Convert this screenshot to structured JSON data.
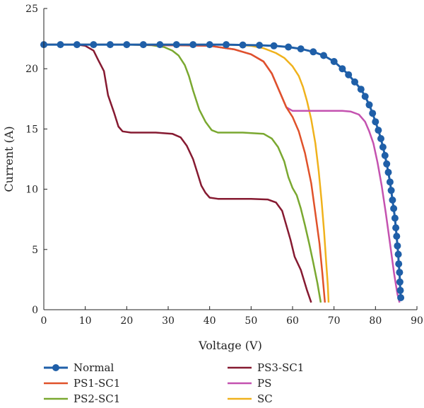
{
  "chart_data": {
    "type": "line",
    "xlabel": "Voltage (V)",
    "ylabel": "Current (A)",
    "xlim": [
      0,
      90
    ],
    "ylim": [
      0,
      25
    ],
    "xticks": [
      0,
      10,
      20,
      30,
      40,
      50,
      60,
      70,
      80,
      90
    ],
    "yticks": [
      0,
      5,
      10,
      15,
      20,
      25
    ],
    "grid": false,
    "legend_position": "bottom",
    "series": [
      {
        "name": "Normal",
        "color": "#1f5fa8",
        "markers": true,
        "points": [
          [
            0,
            22
          ],
          [
            4,
            22
          ],
          [
            8,
            22
          ],
          [
            12,
            22
          ],
          [
            16,
            22
          ],
          [
            20,
            22
          ],
          [
            24,
            22
          ],
          [
            28,
            22
          ],
          [
            32,
            22
          ],
          [
            36,
            22
          ],
          [
            40,
            22
          ],
          [
            44,
            22
          ],
          [
            48,
            21.97
          ],
          [
            52,
            21.95
          ],
          [
            55.5,
            21.9
          ],
          [
            59,
            21.8
          ],
          [
            62,
            21.65
          ],
          [
            65,
            21.4
          ],
          [
            67.5,
            21.1
          ],
          [
            70,
            20.6
          ],
          [
            72,
            20
          ],
          [
            73.5,
            19.5
          ],
          [
            75,
            18.9
          ],
          [
            76.5,
            18.3
          ],
          [
            77.5,
            17.7
          ],
          [
            78.5,
            17
          ],
          [
            79.3,
            16.3
          ],
          [
            80,
            15.6
          ],
          [
            80.7,
            14.9
          ],
          [
            81.3,
            14.2
          ],
          [
            81.8,
            13.5
          ],
          [
            82.3,
            12.8
          ],
          [
            82.7,
            12.1
          ],
          [
            83.1,
            11.4
          ],
          [
            83.5,
            10.6
          ],
          [
            83.8,
            9.9
          ],
          [
            84.1,
            9.1
          ],
          [
            84.4,
            8.4
          ],
          [
            84.7,
            7.6
          ],
          [
            84.9,
            6.8
          ],
          [
            85.1,
            6.1
          ],
          [
            85.3,
            5.3
          ],
          [
            85.5,
            4.6
          ],
          [
            85.6,
            3.8
          ],
          [
            85.8,
            3.1
          ],
          [
            85.9,
            2.3
          ],
          [
            86,
            1.6
          ],
          [
            86.1,
            1
          ]
        ]
      },
      {
        "name": "PS1-SC1",
        "color": "#e0522a",
        "markers": false,
        "points": [
          [
            0,
            22
          ],
          [
            20,
            22
          ],
          [
            40,
            21.9
          ],
          [
            46,
            21.6
          ],
          [
            50,
            21.2
          ],
          [
            53,
            20.6
          ],
          [
            55,
            19.6
          ],
          [
            57,
            18
          ],
          [
            58.5,
            16.8
          ],
          [
            60,
            16
          ],
          [
            61.5,
            14.8
          ],
          [
            63,
            13
          ],
          [
            64.5,
            10.5
          ],
          [
            65.5,
            8
          ],
          [
            66.5,
            5.5
          ],
          [
            67.2,
            3
          ],
          [
            67.8,
            0.6
          ]
        ]
      },
      {
        "name": "PS2-SC1",
        "color": "#7aa830",
        "markers": false,
        "points": [
          [
            0,
            22
          ],
          [
            20,
            22
          ],
          [
            26,
            21.95
          ],
          [
            29,
            21.8
          ],
          [
            31,
            21.5
          ],
          [
            32.5,
            21.1
          ],
          [
            34,
            20.3
          ],
          [
            35,
            19.4
          ],
          [
            36,
            18.2
          ],
          [
            37.5,
            16.6
          ],
          [
            39,
            15.6
          ],
          [
            40.5,
            14.9
          ],
          [
            42,
            14.7
          ],
          [
            48,
            14.7
          ],
          [
            53,
            14.6
          ],
          [
            55,
            14.2
          ],
          [
            56.5,
            13.5
          ],
          [
            58,
            12.3
          ],
          [
            59,
            11
          ],
          [
            60,
            10.1
          ],
          [
            61,
            9.5
          ],
          [
            62,
            8.4
          ],
          [
            63,
            7
          ],
          [
            64,
            5.5
          ],
          [
            65,
            3.9
          ],
          [
            66,
            2.2
          ],
          [
            66.8,
            0.6
          ]
        ]
      },
      {
        "name": "PS3-SC1",
        "color": "#861a31",
        "markers": false,
        "points": [
          [
            0,
            22
          ],
          [
            8,
            22
          ],
          [
            10,
            21.9
          ],
          [
            12,
            21.5
          ],
          [
            13,
            20.8
          ],
          [
            14.5,
            19.8
          ],
          [
            15.5,
            17.8
          ],
          [
            17,
            16.3
          ],
          [
            18,
            15.2
          ],
          [
            19,
            14.8
          ],
          [
            21,
            14.7
          ],
          [
            27,
            14.7
          ],
          [
            31,
            14.6
          ],
          [
            33,
            14.3
          ],
          [
            34.5,
            13.6
          ],
          [
            36,
            12.5
          ],
          [
            37,
            11.4
          ],
          [
            38,
            10.3
          ],
          [
            39,
            9.7
          ],
          [
            40,
            9.3
          ],
          [
            42,
            9.2
          ],
          [
            50,
            9.2
          ],
          [
            54,
            9.15
          ],
          [
            56,
            8.9
          ],
          [
            57.5,
            8.2
          ],
          [
            58.5,
            7
          ],
          [
            59.5,
            5.8
          ],
          [
            60.5,
            4.4
          ],
          [
            62,
            3.3
          ],
          [
            63.5,
            1.6
          ],
          [
            64.5,
            0.6
          ]
        ]
      },
      {
        "name": "PS",
        "color": "#c452b0",
        "markers": false,
        "points": [
          [
            0,
            22
          ],
          [
            20,
            22
          ],
          [
            40,
            21.9
          ],
          [
            46,
            21.6
          ],
          [
            50,
            21.2
          ],
          [
            53,
            20.6
          ],
          [
            55,
            19.6
          ],
          [
            57,
            18
          ],
          [
            58.5,
            16.8
          ],
          [
            60,
            16.5
          ],
          [
            66,
            16.5
          ],
          [
            72,
            16.5
          ],
          [
            74,
            16.45
          ],
          [
            76,
            16.2
          ],
          [
            77.5,
            15.6
          ],
          [
            78.5,
            14.8
          ],
          [
            79.5,
            13.8
          ],
          [
            80.5,
            12.2
          ],
          [
            81.5,
            10.3
          ],
          [
            82.5,
            8
          ],
          [
            83.5,
            5.5
          ],
          [
            84.5,
            3
          ],
          [
            85.3,
            1.3
          ],
          [
            85.8,
            0.6
          ]
        ]
      },
      {
        "name": "SC",
        "color": "#f0b21c",
        "markers": false,
        "points": [
          [
            0,
            22
          ],
          [
            20,
            22
          ],
          [
            40,
            22
          ],
          [
            46,
            21.98
          ],
          [
            50,
            21.9
          ],
          [
            53,
            21.7
          ],
          [
            56,
            21.3
          ],
          [
            58,
            20.9
          ],
          [
            60,
            20.2
          ],
          [
            61.5,
            19.4
          ],
          [
            62.5,
            18.5
          ],
          [
            63.5,
            17.3
          ],
          [
            64.5,
            15.8
          ],
          [
            65.5,
            13.8
          ],
          [
            66.3,
            11.5
          ],
          [
            67,
            9
          ],
          [
            67.6,
            6.5
          ],
          [
            68.1,
            4
          ],
          [
            68.5,
            2
          ],
          [
            68.7,
            0.6
          ]
        ]
      }
    ]
  }
}
